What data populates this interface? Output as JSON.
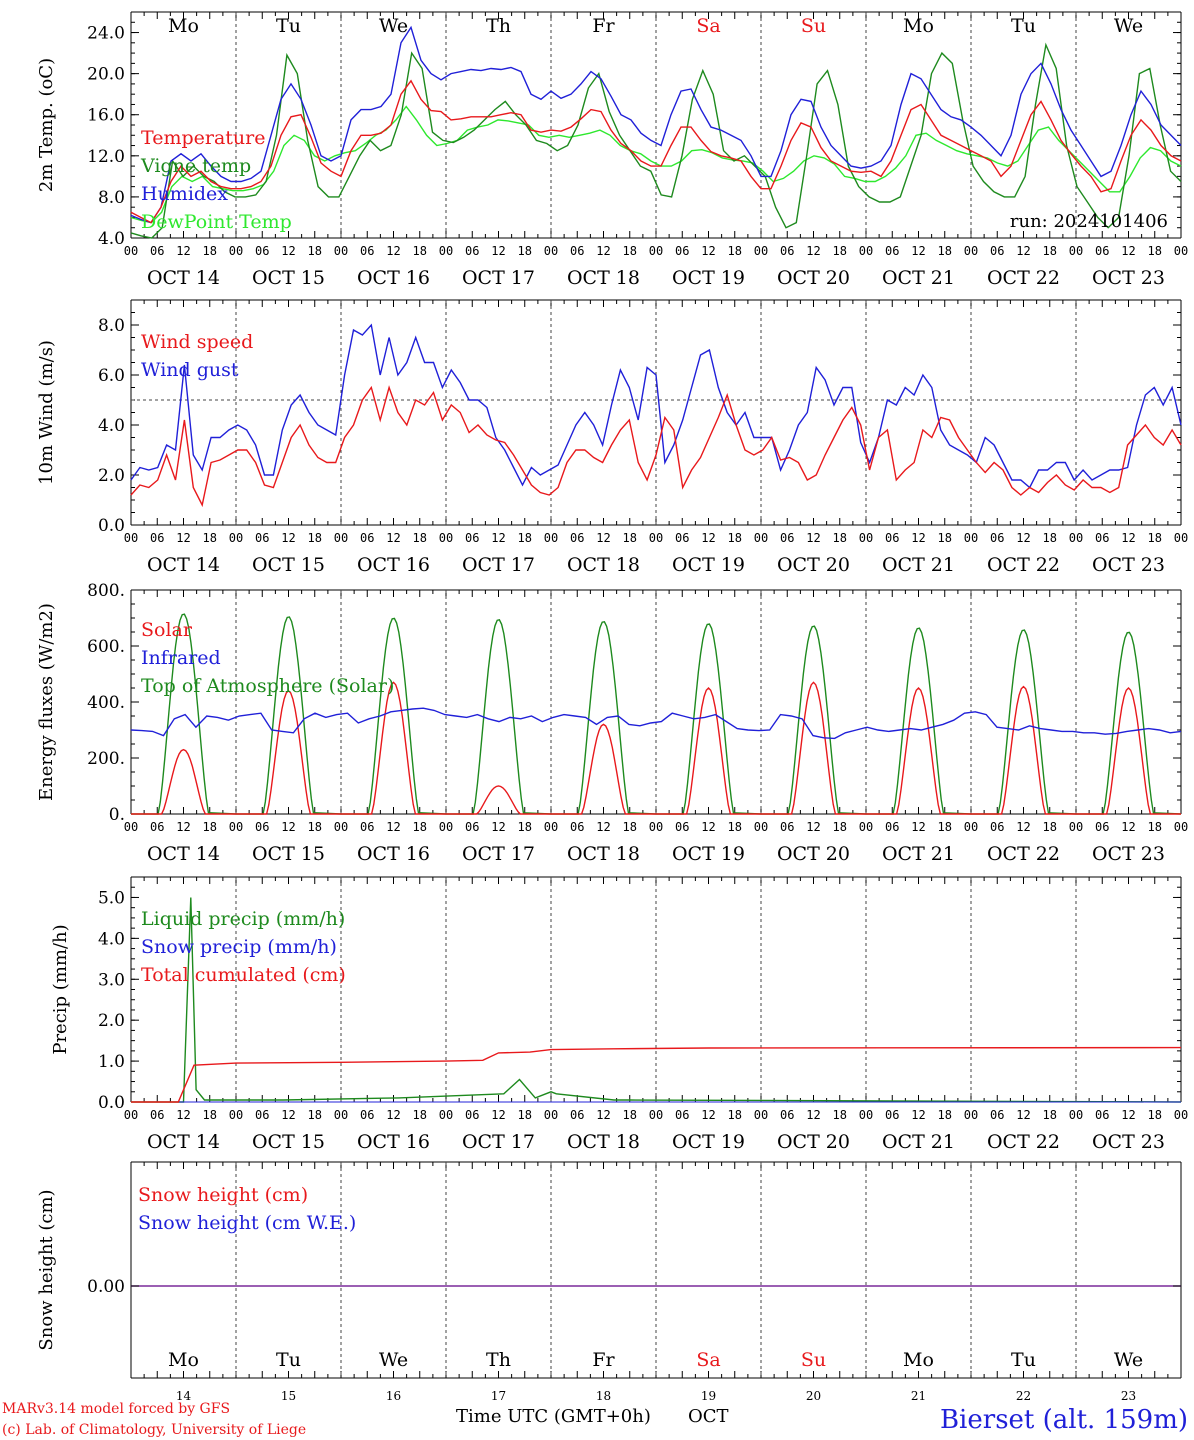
{
  "days": [
    "Mo",
    "Tu",
    "We",
    "Th",
    "Fr",
    "Sa",
    "Su",
    "Mo",
    "Tu",
    "We"
  ],
  "day_colors": [
    "#000000",
    "#000000",
    "#000000",
    "#000000",
    "#000000",
    "#e8191c",
    "#e8191c",
    "#000000",
    "#000000",
    "#000000"
  ],
  "date_labels": [
    "OCT 14",
    "OCT 15",
    "OCT 16",
    "OCT 17",
    "OCT 18",
    "OCT 19",
    "OCT 20",
    "OCT 21",
    "OCT 22",
    "OCT 23"
  ],
  "hour_ticks": [
    "00",
    "06",
    "12",
    "18"
  ],
  "bottom_day_numbers": [
    "14",
    "15",
    "16",
    "17",
    "18",
    "19",
    "20",
    "21",
    "22",
    "23"
  ],
  "xlabel": "Time UTC (GMT+0h)",
  "xlabel_month": "OCT",
  "footer_line1": "MARv3.14 model forced by GFS",
  "footer_line2": "(c) Lab. of Climatology, University of Liege",
  "station": "Bierset (alt. 159m)",
  "run_label": "run: 2024101406",
  "colors": {
    "red": "#e8191c",
    "green": "#1e8a1e",
    "blue": "#2020d8",
    "light_green": "#2ee82e",
    "purple": "#7a2a9a",
    "grid": "#444444"
  },
  "chart_data": [
    {
      "type": "line",
      "ylabel": "2m Temp. (oC)",
      "ylim": [
        4,
        26
      ],
      "yticks": [
        "4.0",
        "8.0",
        "12.0",
        "16.0",
        "20.0",
        "24.0"
      ],
      "x_hours_step": 3,
      "series": [
        {
          "name": "Temperature",
          "color": "red",
          "values": [
            6.5,
            6,
            5.5,
            7,
            9.5,
            11,
            10,
            10.5,
            9.5,
            9,
            8.8,
            8.8,
            9,
            9.5,
            11,
            14,
            15.8,
            16,
            13.8,
            11.3,
            10.5,
            10,
            12.5,
            14,
            14,
            14.2,
            15,
            18,
            19.3,
            17.5,
            16.4,
            16.3,
            15.5,
            15.6,
            15.8,
            15.8,
            15.8,
            16,
            16.2,
            16,
            14.5,
            14.3,
            14.5,
            14.4,
            14.8,
            15.6,
            16.5,
            16.3,
            14.5,
            13.2,
            12.5,
            11.5,
            11,
            11,
            13,
            14.8,
            14.8,
            13.5,
            12.4,
            12,
            11.8,
            11.5,
            10,
            8.8,
            8.8,
            11,
            13.5,
            15.2,
            14.8,
            12.8,
            11.5,
            11,
            10.5,
            10.4,
            10.5,
            10,
            11.5,
            14,
            16.5,
            17,
            15.5,
            14,
            13.5,
            13,
            12.5,
            12,
            11.5,
            10,
            11,
            13.5,
            16,
            17.3,
            15.5,
            13.5,
            12.2,
            11,
            10,
            8.5,
            8.8,
            11.5,
            14,
            15.5,
            14.5,
            13,
            12,
            11.5
          ]
        },
        {
          "name": "Vigne temp",
          "color": "green",
          "values": [
            4.5,
            4.2,
            4,
            5,
            11.5,
            10,
            11,
            10,
            9.5,
            8.5,
            8,
            8,
            8.2,
            9.5,
            14,
            21.8,
            20,
            13.5,
            9,
            8,
            8,
            10,
            12,
            13.5,
            12.5,
            13,
            16,
            22,
            20.5,
            14.3,
            13.5,
            13.3,
            13.8,
            14.5,
            15.5,
            16.5,
            17.3,
            16,
            15,
            13.5,
            13.2,
            12.5,
            13,
            15,
            18.6,
            20,
            16.3,
            14,
            12.5,
            11,
            10.5,
            8.2,
            8,
            12,
            17.5,
            20.3,
            18,
            12.5,
            11.5,
            12,
            11,
            10,
            7,
            5,
            5.5,
            12,
            19,
            20.3,
            17,
            11,
            9,
            8,
            7.5,
            7.5,
            8,
            11,
            14,
            20,
            22,
            21,
            15.5,
            11,
            9.5,
            8.5,
            8,
            8,
            10,
            17,
            22.8,
            20.5,
            13,
            9,
            7.5,
            6,
            5,
            6,
            12,
            20,
            20.5,
            15,
            10.5,
            9.5
          ]
        },
        {
          "name": "Humidex",
          "color": "blue",
          "values": [
            6.2,
            5.8,
            5.5,
            7,
            11.5,
            12.2,
            11.5,
            12.2,
            11,
            10,
            9.5,
            9.5,
            9.8,
            10.5,
            14,
            17.5,
            19,
            17.5,
            15,
            12,
            11.5,
            12,
            15.5,
            16.5,
            16.5,
            16.8,
            18,
            23,
            24.5,
            21.3,
            20,
            19.4,
            20,
            20.2,
            20.4,
            20.3,
            20.5,
            20.4,
            20.6,
            20.2,
            18,
            17.5,
            18.3,
            17.6,
            18,
            19,
            20.2,
            19.5,
            17.8,
            16,
            15.5,
            14.2,
            13.5,
            13,
            16,
            18.3,
            18.5,
            16.5,
            14.8,
            14.5,
            14,
            13.5,
            12,
            10,
            10,
            12.5,
            16,
            17.5,
            17.3,
            14.8,
            13,
            12,
            11,
            10.8,
            11,
            11.5,
            13,
            17,
            20,
            19.5,
            18,
            16.5,
            15.8,
            15.5,
            14.8,
            14,
            13,
            12,
            14,
            18,
            20,
            21,
            19,
            16.5,
            14.5,
            13,
            11.5,
            10,
            10.5,
            13,
            16,
            18.3,
            17,
            15,
            14,
            13
          ]
        },
        {
          "name": "DewPoint Temp",
          "color": "light_green",
          "values": [
            6,
            5.7,
            5.5,
            6.5,
            9,
            10,
            9.5,
            10,
            9,
            8.8,
            8.6,
            8.6,
            8.8,
            9.2,
            10.5,
            13,
            14,
            13.5,
            12,
            11.5,
            12,
            12.3,
            12.5,
            13.2,
            14,
            14.5,
            15.5,
            16.8,
            15.5,
            14,
            13,
            13.2,
            13.5,
            14.5,
            14.8,
            15,
            15.5,
            15.4,
            15.2,
            15,
            14,
            13.8,
            14,
            13.8,
            14,
            14.2,
            14.5,
            14,
            13,
            12.5,
            12.2,
            11.5,
            11,
            11,
            11.5,
            12.5,
            12.6,
            12.3,
            11.8,
            11.6,
            11.5,
            11.3,
            10.5,
            9.5,
            9.8,
            10.5,
            11.5,
            12,
            11.8,
            11.2,
            10,
            9.8,
            9.5,
            9.5,
            10,
            10.8,
            12,
            14,
            14.2,
            13.5,
            13,
            12.5,
            12.2,
            12,
            11.8,
            11.3,
            11,
            11.5,
            13,
            14.5,
            14.8,
            13.5,
            12.5,
            11.5,
            10.5,
            9.5,
            8.5,
            8.5,
            10,
            11.8,
            12.8,
            12.5,
            11.5,
            11
          ]
        }
      ]
    },
    {
      "type": "line",
      "ylabel": "10m Wind (m/s)",
      "ylim": [
        0,
        9
      ],
      "yticks": [
        "0.0",
        "2.0",
        "4.0",
        "6.0",
        "8.0"
      ],
      "reference_line": 5,
      "x_hours_step": 3,
      "series": [
        {
          "name": "Wind speed",
          "color": "red",
          "values": [
            1.2,
            1.6,
            1.5,
            1.8,
            2.8,
            1.8,
            4.2,
            1.5,
            0.8,
            2.5,
            2.6,
            2.8,
            3,
            3,
            2.5,
            1.6,
            1.5,
            2.5,
            3.5,
            4,
            3.2,
            2.7,
            2.5,
            2.5,
            3.5,
            4,
            5,
            5.5,
            4.2,
            5.5,
            4.5,
            4,
            5,
            4.8,
            5.3,
            4.2,
            4.8,
            4.5,
            3.7,
            4,
            3.6,
            3.4,
            3.3,
            2.8,
            2.2,
            1.6,
            1.3,
            1.2,
            1.5,
            2.5,
            3,
            3,
            2.7,
            2.5,
            3.2,
            3.8,
            4.2,
            2.5,
            1.8,
            2.8,
            4.3,
            3.8,
            1.5,
            2.2,
            2.7,
            3.5,
            4.3,
            5.2,
            4,
            3,
            2.8,
            3,
            3.5,
            2.6,
            2.7,
            2.5,
            1.8,
            2,
            2.8,
            3.5,
            4.2,
            4.7,
            4,
            2.2,
            3.5,
            3.8,
            1.8,
            2.2,
            2.5,
            3.8,
            3.5,
            4.3,
            4.2,
            3.5,
            3,
            2.5,
            2.1,
            2.5,
            2.2,
            1.5,
            1.2,
            1.5,
            1.3,
            1.7,
            2,
            1.6,
            1.4,
            1.8,
            1.5,
            1.5,
            1.3,
            1.5,
            3.2,
            3.6,
            4,
            3.5,
            3.2,
            3.8,
            3.2
          ]
        },
        {
          "name": "Wind gust",
          "color": "blue",
          "values": [
            1.8,
            2.3,
            2.2,
            2.3,
            3.2,
            3,
            6.4,
            2.8,
            2.2,
            3.5,
            3.5,
            3.8,
            4,
            3.8,
            3.2,
            2,
            2,
            3.8,
            4.8,
            5.2,
            4.5,
            4,
            3.8,
            3.6,
            6,
            7.8,
            7.6,
            8,
            6,
            7.5,
            6,
            6.5,
            7.5,
            6.5,
            6.5,
            5.5,
            6.2,
            5.7,
            5,
            5,
            4.7,
            3.5,
            3,
            2.3,
            1.6,
            2.3,
            2,
            2.2,
            2.4,
            3.2,
            4,
            4.5,
            4,
            3.2,
            4.8,
            6.2,
            5.5,
            4.2,
            6.3,
            6,
            2.5,
            3.2,
            4.2,
            5.5,
            6.8,
            7,
            5.5,
            4.5,
            4,
            4.5,
            3.5,
            3.5,
            3.5,
            2.2,
            3,
            4,
            4.5,
            6.3,
            5.8,
            4.8,
            5.5,
            5.5,
            3.3,
            2.5,
            3.5,
            5,
            4.8,
            5.5,
            5.2,
            6,
            5.5,
            3.8,
            3.2,
            3,
            2.8,
            2.5,
            3.5,
            3.2,
            2.5,
            1.8,
            1.8,
            1.5,
            2.2,
            2.2,
            2.5,
            2.5,
            1.8,
            2.2,
            1.8,
            2,
            2.2,
            2.2,
            2.3,
            4,
            5.2,
            5.5,
            4.8,
            5.5,
            4
          ]
        }
      ]
    },
    {
      "type": "line",
      "ylabel": "Energy fluxes (W/m2)",
      "ylim": [
        0,
        800
      ],
      "yticks": [
        "0.",
        "200.",
        "400.",
        "600.",
        "800."
      ],
      "x_hours_step": 3,
      "series": [
        {
          "name": "Solar",
          "color": "red",
          "daily": true,
          "peaks": [
            230,
            440,
            470,
            100,
            320,
            450,
            470,
            450,
            455,
            450
          ]
        },
        {
          "name": "Infrared",
          "color": "blue",
          "values": [
            300,
            298,
            295,
            280,
            340,
            355,
            310,
            350,
            345,
            335,
            350,
            355,
            360,
            300,
            295,
            290,
            340,
            360,
            345,
            355,
            360,
            325,
            340,
            350,
            365,
            370,
            375,
            378,
            370,
            355,
            350,
            345,
            355,
            340,
            330,
            345,
            340,
            350,
            330,
            345,
            355,
            350,
            345,
            320,
            345,
            350,
            320,
            315,
            325,
            330,
            360,
            350,
            340,
            345,
            355,
            330,
            305,
            300,
            298,
            300,
            355,
            350,
            340,
            280,
            272,
            270,
            290,
            300,
            310,
            300,
            295,
            300,
            305,
            300,
            310,
            320,
            335,
            360,
            365,
            355,
            310,
            305,
            300,
            315,
            305,
            300,
            295,
            295,
            290,
            290,
            285,
            288,
            295,
            300,
            305,
            300,
            290,
            295
          ]
        },
        {
          "name": "Top of Atmosphere (Solar)",
          "color": "green",
          "daily": true,
          "peaks": [
            715,
            705,
            700,
            695,
            688,
            680,
            672,
            665,
            658,
            650
          ]
        }
      ]
    },
    {
      "type": "line",
      "ylabel": "Precip (mm/h)",
      "ylim": [
        0,
        5.5
      ],
      "yticks": [
        "0.0",
        "1.0",
        "2.0",
        "3.0",
        "4.0",
        "5.0"
      ],
      "x_hours_step": 3,
      "series": [
        {
          "name": "Liquid precip (mm/h)",
          "color": "green",
          "events": [
            [
              0.5,
              0.0
            ],
            [
              0.57,
              5.0
            ],
            [
              0.62,
              0.3
            ],
            [
              0.7,
              0.05
            ],
            [
              1.45,
              0.05
            ],
            [
              2.55,
              0.1
            ],
            [
              3.55,
              0.2
            ],
            [
              3.7,
              0.55
            ],
            [
              3.85,
              0.1
            ],
            [
              4.0,
              0.25
            ],
            [
              4.05,
              0.2
            ],
            [
              4.6,
              0.05
            ],
            [
              4.75,
              0.05
            ]
          ]
        },
        {
          "name": "Snow precip (mm/h)",
          "color": "blue",
          "values_constant": 0
        },
        {
          "name": "Total cumulated (cm)",
          "color": "red",
          "cumulative": [
            [
              0,
              0
            ],
            [
              0.45,
              0
            ],
            [
              0.6,
              0.9
            ],
            [
              1.0,
              0.95
            ],
            [
              2.0,
              0.97
            ],
            [
              3.0,
              1.0
            ],
            [
              3.35,
              1.02
            ],
            [
              3.5,
              1.2
            ],
            [
              3.8,
              1.22
            ],
            [
              4.0,
              1.28
            ],
            [
              4.6,
              1.3
            ],
            [
              5.5,
              1.32
            ],
            [
              10,
              1.33
            ]
          ]
        }
      ]
    },
    {
      "type": "line",
      "ylabel": "Snow height (cm)",
      "yticks": [
        "0.00"
      ],
      "series": [
        {
          "name": "Snow height (cm)",
          "color": "red",
          "values_constant": 0
        },
        {
          "name": "Snow height (cm W.E.)",
          "color": "blue",
          "values_constant": 0
        }
      ]
    }
  ]
}
